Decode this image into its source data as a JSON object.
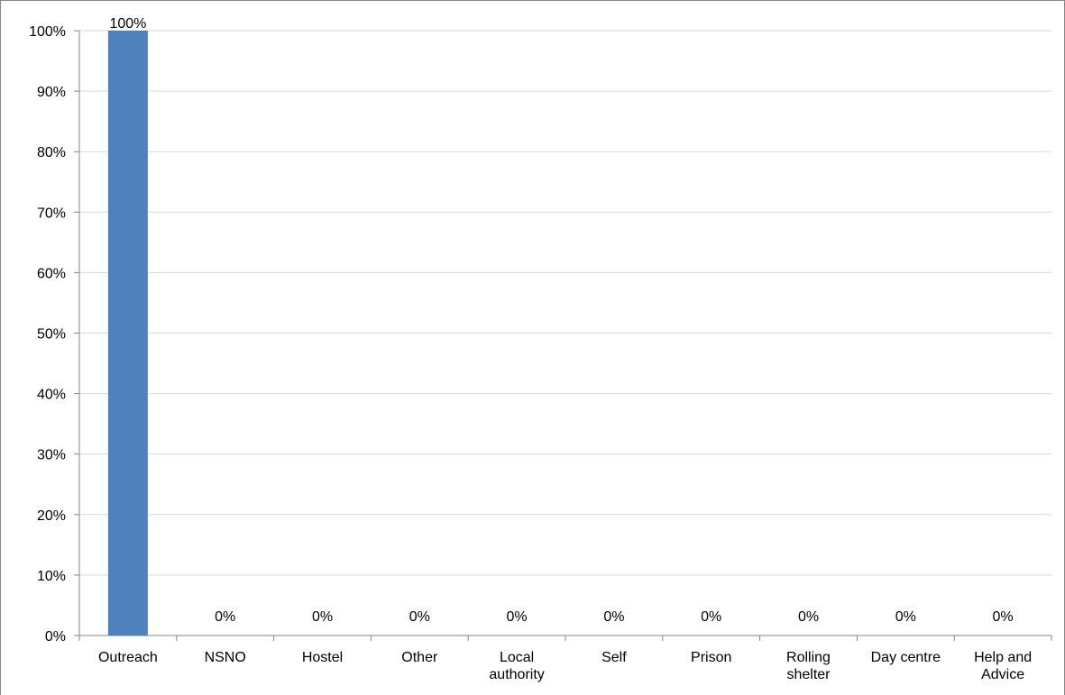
{
  "chart_data": {
    "type": "bar",
    "categories": [
      [
        "Outreach"
      ],
      [
        "NSNO"
      ],
      [
        "Hostel"
      ],
      [
        "Other"
      ],
      [
        "Local",
        "authority"
      ],
      [
        "Self"
      ],
      [
        "Prison"
      ],
      [
        "Rolling",
        "shelter"
      ],
      [
        "Day centre"
      ],
      [
        "Help and",
        "Advice"
      ]
    ],
    "values": [
      100,
      0,
      0,
      0,
      0,
      0,
      0,
      0,
      0,
      0
    ],
    "data_labels": [
      "100%",
      "0%",
      "0%",
      "0%",
      "0%",
      "0%",
      "0%",
      "0%",
      "0%",
      "0%"
    ],
    "y_ticks": [
      "0%",
      "10%",
      "20%",
      "30%",
      "40%",
      "50%",
      "60%",
      "70%",
      "80%",
      "90%",
      "100%"
    ],
    "ylim": [
      0,
      100
    ],
    "title": "",
    "xlabel": "",
    "ylabel": "",
    "grid": true,
    "legend": "none",
    "colors": {
      "bar": "#4F81BD",
      "grid": "#D9D9D9",
      "axis": "#868686"
    }
  }
}
